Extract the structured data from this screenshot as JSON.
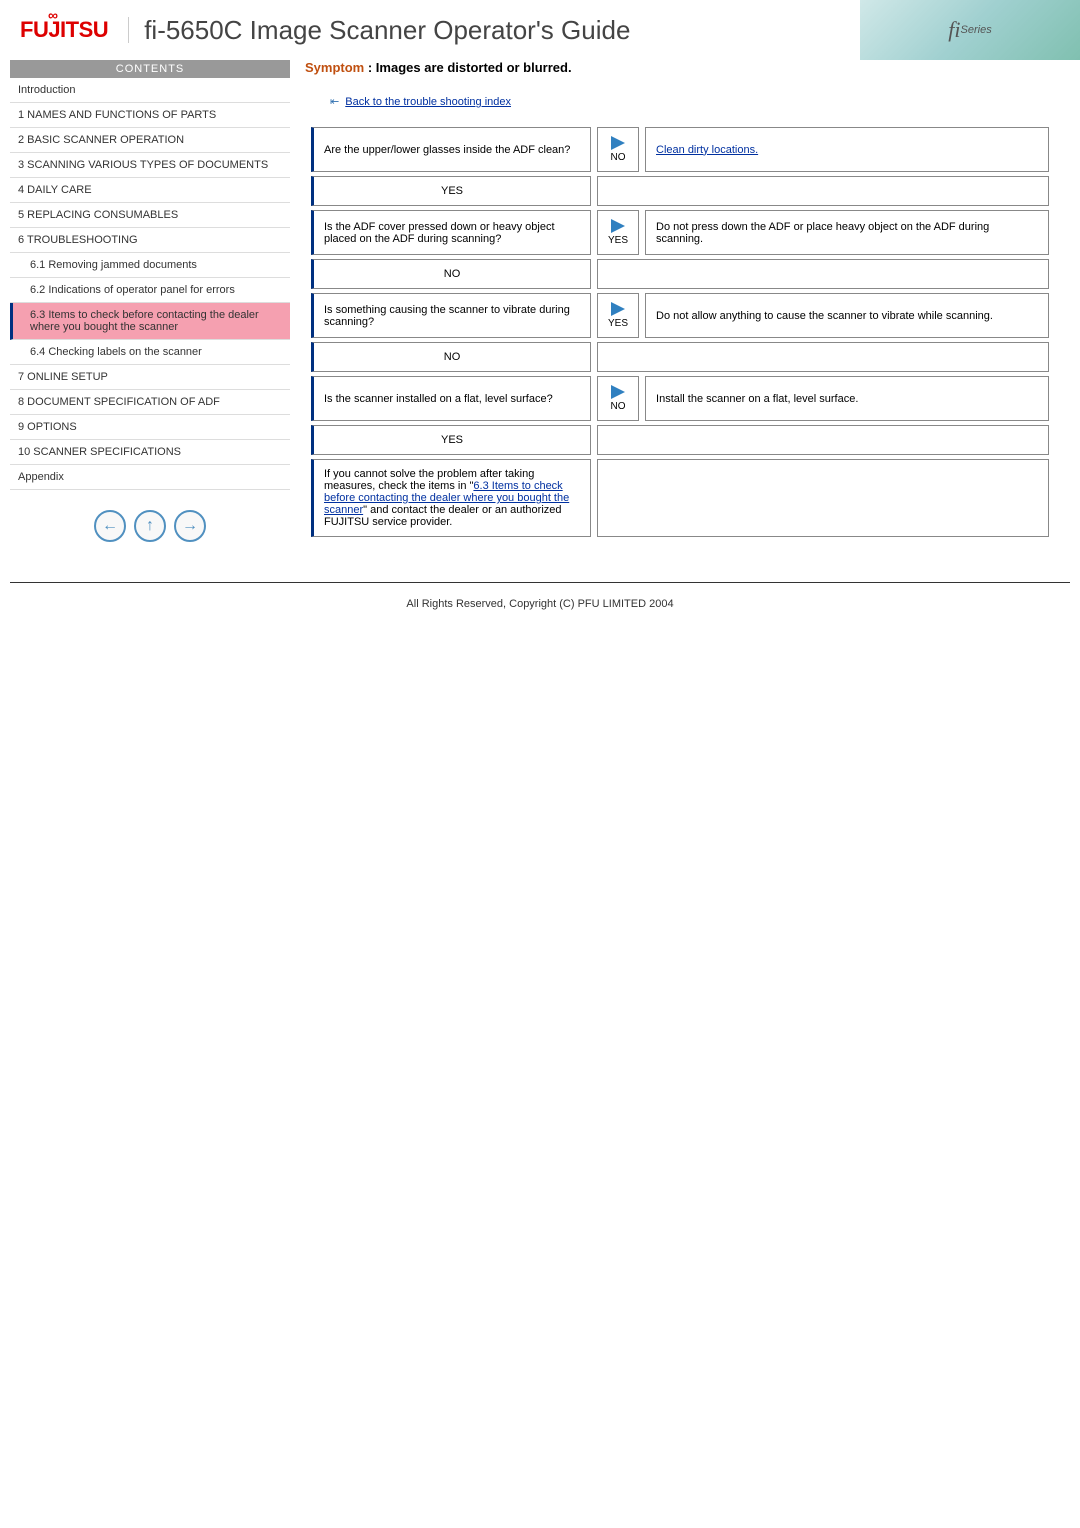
{
  "header": {
    "logo_text": "FUJITSU",
    "title": "fi-5650C Image Scanner Operator's Guide",
    "series_fi": "fi",
    "series_text": "Series"
  },
  "sidebar": {
    "contents_label": "CONTENTS",
    "items": [
      {
        "label": "Introduction",
        "sub": false,
        "active": false
      },
      {
        "label": "1 NAMES AND FUNCTIONS OF PARTS",
        "sub": false,
        "active": false
      },
      {
        "label": "2 BASIC SCANNER OPERATION",
        "sub": false,
        "active": false
      },
      {
        "label": "3 SCANNING VARIOUS TYPES OF DOCUMENTS",
        "sub": false,
        "active": false
      },
      {
        "label": "4 DAILY CARE",
        "sub": false,
        "active": false
      },
      {
        "label": "5 REPLACING CONSUMABLES",
        "sub": false,
        "active": false
      },
      {
        "label": "6 TROUBLESHOOTING",
        "sub": false,
        "active": false
      },
      {
        "label": "6.1 Removing jammed documents",
        "sub": true,
        "active": false
      },
      {
        "label": "6.2 Indications of operator panel for errors",
        "sub": true,
        "active": false
      },
      {
        "label": "6.3 Items to check before contacting the dealer where you bought the scanner",
        "sub": true,
        "active": true
      },
      {
        "label": "6.4 Checking labels on the scanner",
        "sub": true,
        "active": false
      },
      {
        "label": "7 ONLINE SETUP",
        "sub": false,
        "active": false
      },
      {
        "label": "8 DOCUMENT SPECIFICATION OF ADF",
        "sub": false,
        "active": false
      },
      {
        "label": "9 OPTIONS",
        "sub": false,
        "active": false
      },
      {
        "label": "10 SCANNER SPECIFICATIONS",
        "sub": false,
        "active": false
      },
      {
        "label": "Appendix",
        "sub": false,
        "active": false
      }
    ]
  },
  "content": {
    "symptom_label": "Symptom",
    "symptom_text": ": Images are distorted or blurred.",
    "back_link": "Back to the trouble shooting index",
    "rows": [
      {
        "question": "Are the upper/lower glasses inside the ADF clean?",
        "arrow_label": "NO",
        "answer_link": "Clean dirty locations.",
        "answer_plain": "",
        "follow": "YES"
      },
      {
        "question": "Is the ADF cover pressed down or heavy object placed on the ADF during scanning?",
        "arrow_label": "YES",
        "answer_link": "",
        "answer_plain": "Do not press down the ADF or place heavy object on the ADF during scanning.",
        "follow": "NO"
      },
      {
        "question": "Is something causing the scanner to vibrate during scanning?",
        "arrow_label": "YES",
        "answer_link": "",
        "answer_plain": "Do not allow anything to cause the scanner to vibrate while scanning.",
        "follow": "NO"
      },
      {
        "question": "Is the scanner installed on a flat, level surface?",
        "arrow_label": "NO",
        "answer_link": "",
        "answer_plain": "Install the scanner on a flat, level surface.",
        "follow": "YES"
      }
    ],
    "final_pre": "If you cannot solve the problem after taking measures, check the items in \"",
    "final_link": "6.3 Items to check before contacting the dealer where you bought the scanner",
    "final_post": "\" and contact the dealer or an authorized FUJITSU service provider."
  },
  "footer": {
    "copyright": "All Rights Reserved, Copyright (C) PFU LIMITED 2004"
  },
  "colors": {
    "accent_red": "#c05010",
    "link_blue": "#0030a0",
    "border_blue": "#003080",
    "arrow_blue": "#3080c0",
    "active_pink": "#f5a0b0"
  }
}
